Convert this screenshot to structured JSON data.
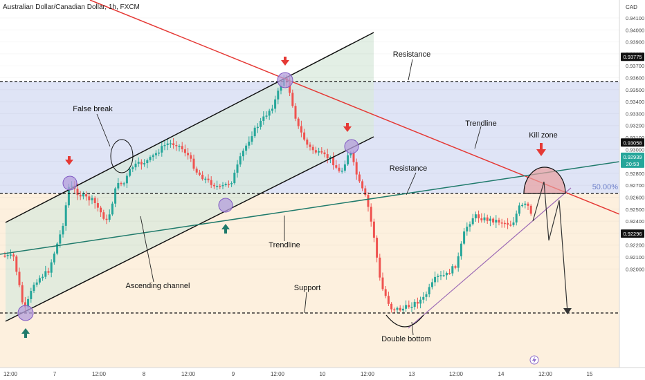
{
  "header": {
    "title": "Australian Dollar/Canadian Dollar, 1h, FXCM"
  },
  "chart_data": {
    "type": "candlestick",
    "currency": "CAD",
    "y_ticks": [
      "0.94100",
      "0.94000",
      "0.93900",
      "0.93800",
      "0.93700",
      "0.93600",
      "0.93500",
      "0.93400",
      "0.93300",
      "0.93200",
      "0.93100",
      "0.93000",
      "0.92900",
      "0.92800",
      "0.92700",
      "0.92600",
      "0.92500",
      "0.92400",
      "0.92300",
      "0.92200",
      "0.92100",
      "0.92000"
    ],
    "x_ticks": [
      "12:00",
      "7",
      "12:00",
      "8",
      "12:00",
      "9",
      "12:00",
      "10",
      "12:00",
      "13",
      "12:00",
      "14",
      "12:00",
      "15"
    ],
    "price_labels": [
      {
        "key": "resistance_high",
        "text": "0.93775",
        "value": 0.93775
      },
      {
        "key": "resistance_mid",
        "text": "0.93058",
        "value": 0.93058
      },
      {
        "key": "support",
        "text": "0.92296",
        "value": 0.92296
      }
    ],
    "current_price": {
      "price": "0.92939",
      "countdown": "20:53",
      "value": 0.92939
    },
    "fib_label": "50.00%",
    "annotations": [
      "Resistance",
      "Trendline",
      "Kill zone",
      "Resistance",
      "False break",
      "Trendline",
      "Ascending channel",
      "Support",
      "Double bottom"
    ],
    "colors": {
      "up": "#26a69a",
      "down": "#ef5350",
      "resistance_zone": "#d6dcf5",
      "support_zone": "#fdeed8",
      "channel_fill": "#e3eee6",
      "red_line": "#e53935",
      "teal_line": "#1f7a6b",
      "marker_purple": "#b39ddb"
    }
  }
}
